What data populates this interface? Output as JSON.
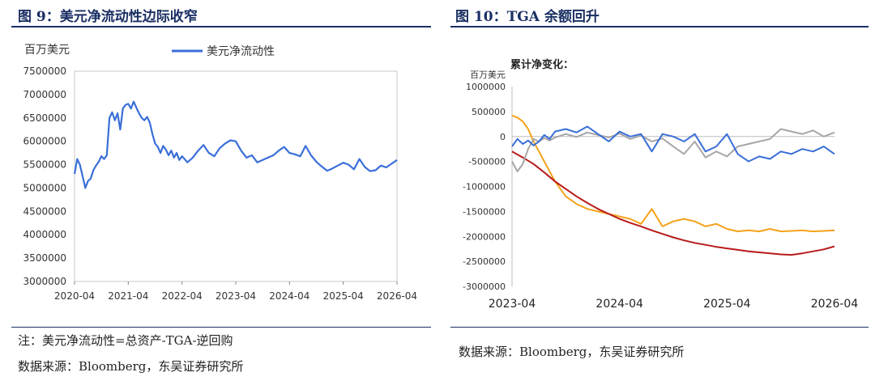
{
  "left": {
    "figure_title": "图 9：美元净流动性边际收窄",
    "note": "注：美元净流动性=总资产-TGA-逆回购",
    "source": "数据来源：Bloomberg，东吴证券研究所"
  },
  "right": {
    "figure_title": "图 10：TGA 余额回升",
    "source": "数据来源：Bloomberg，东吴证券研究所"
  },
  "chart_data": [
    {
      "type": "line",
      "title": "美元净流动性边际收窄",
      "ylabel": "百万美元",
      "ylim": [
        3000000,
        7500000
      ],
      "yticks": [
        "3000000",
        "3500000",
        "4000000",
        "4500000",
        "5000000",
        "5500000",
        "6000000",
        "6500000",
        "7000000",
        "7500000"
      ],
      "xticks": [
        "2020-04",
        "2021-04",
        "2022-04",
        "2023-04",
        "2024-04",
        "2025-04",
        "2026-04"
      ],
      "series": [
        {
          "name": "美元净流动性",
          "color": "#3a6fd8",
          "x": [
            0,
            0.05,
            0.1,
            0.15,
            0.2,
            0.25,
            0.3,
            0.35,
            0.4,
            0.45,
            0.5,
            0.55,
            0.6,
            0.65,
            0.7,
            0.75,
            0.8,
            0.85,
            0.9,
            0.95,
            1.0,
            1.05,
            1.1,
            1.15,
            1.2,
            1.25,
            1.3,
            1.35,
            1.4,
            1.45,
            1.5,
            1.55,
            1.6,
            1.65,
            1.7,
            1.75,
            1.8,
            1.85,
            1.9,
            1.95,
            2.0,
            2.1,
            2.2,
            2.3,
            2.4,
            2.5,
            2.6,
            2.7,
            2.8,
            2.9,
            3.0,
            3.1,
            3.2,
            3.3,
            3.4,
            3.5,
            3.6,
            3.7,
            3.8,
            3.9,
            4.0,
            4.1,
            4.2,
            4.3,
            4.4,
            4.5,
            4.6,
            4.7,
            4.8,
            4.9,
            5.0,
            5.1,
            5.2,
            5.3,
            5.4,
            5.5,
            5.6,
            5.7,
            5.8,
            5.9,
            6.0
          ],
          "y": [
            5300000,
            5620000,
            5500000,
            5250000,
            5000000,
            5150000,
            5200000,
            5380000,
            5480000,
            5560000,
            5680000,
            5620000,
            5700000,
            6500000,
            6620000,
            6450000,
            6600000,
            6250000,
            6700000,
            6780000,
            6800000,
            6700000,
            6850000,
            6720000,
            6600000,
            6500000,
            6450000,
            6520000,
            6400000,
            6150000,
            5950000,
            5880000,
            5750000,
            5900000,
            5820000,
            5700000,
            5800000,
            5650000,
            5750000,
            5600000,
            5680000,
            5550000,
            5650000,
            5800000,
            5920000,
            5750000,
            5680000,
            5850000,
            5950000,
            6020000,
            6000000,
            5800000,
            5650000,
            5700000,
            5550000,
            5600000,
            5650000,
            5700000,
            5800000,
            5880000,
            5750000,
            5720000,
            5680000,
            5900000,
            5700000,
            5560000,
            5460000,
            5370000,
            5420000,
            5480000,
            5540000,
            5500000,
            5400000,
            5620000,
            5450000,
            5360000,
            5380000,
            5480000,
            5440000,
            5520000,
            5600000
          ]
        }
      ]
    },
    {
      "type": "line",
      "title": "TGA 余额回升",
      "subtitle": "累计净变化：",
      "ylabel": "百万美元",
      "ylim": [
        -3000000,
        1000000
      ],
      "yticks": [
        "1000000",
        "500000",
        "0",
        "-500000",
        "-1000000",
        "-1500000",
        "-2000000",
        "-2500000",
        "-3000000"
      ],
      "xticks": [
        "2023-04",
        "2024-04",
        "2025-04",
        "2026-04"
      ],
      "series": [
        {
          "name": "orange",
          "color": "#f5a21a",
          "x": [
            0,
            0.05,
            0.1,
            0.15,
            0.2,
            0.25,
            0.3,
            0.35,
            0.4,
            0.45,
            0.5,
            0.6,
            0.7,
            0.8,
            0.9,
            1.0,
            1.1,
            1.2,
            1.3,
            1.4,
            1.5,
            1.6,
            1.7,
            1.8,
            1.9,
            2.0,
            2.1,
            2.2,
            2.3,
            2.4,
            2.5,
            2.6,
            2.7,
            2.8,
            2.9,
            3.0
          ],
          "y": [
            420000,
            380000,
            300000,
            150000,
            -100000,
            -300000,
            -500000,
            -700000,
            -900000,
            -1050000,
            -1200000,
            -1350000,
            -1450000,
            -1500000,
            -1550000,
            -1600000,
            -1650000,
            -1750000,
            -1450000,
            -1800000,
            -1700000,
            -1650000,
            -1700000,
            -1800000,
            -1750000,
            -1850000,
            -1900000,
            -1880000,
            -1900000,
            -1850000,
            -1900000,
            -1890000,
            -1880000,
            -1900000,
            -1890000,
            -1880000
          ]
        },
        {
          "name": "dark-red",
          "color": "#b81a1a",
          "x": [
            0,
            0.1,
            0.2,
            0.3,
            0.4,
            0.5,
            0.6,
            0.7,
            0.8,
            0.9,
            1.0,
            1.1,
            1.2,
            1.3,
            1.4,
            1.5,
            1.6,
            1.7,
            1.8,
            1.9,
            2.0,
            2.1,
            2.2,
            2.3,
            2.4,
            2.5,
            2.6,
            2.7,
            2.8,
            2.9,
            3.0
          ],
          "y": [
            -300000,
            -420000,
            -550000,
            -720000,
            -900000,
            -1050000,
            -1200000,
            -1330000,
            -1450000,
            -1550000,
            -1650000,
            -1730000,
            -1800000,
            -1880000,
            -1950000,
            -2020000,
            -2080000,
            -2130000,
            -2170000,
            -2210000,
            -2240000,
            -2270000,
            -2300000,
            -2320000,
            -2340000,
            -2360000,
            -2370000,
            -2340000,
            -2300000,
            -2260000,
            -2200000
          ]
        },
        {
          "name": "gray",
          "color": "#a6a6a6",
          "x": [
            0,
            0.05,
            0.1,
            0.15,
            0.2,
            0.25,
            0.3,
            0.35,
            0.4,
            0.5,
            0.6,
            0.7,
            0.8,
            0.9,
            1.0,
            1.1,
            1.2,
            1.3,
            1.4,
            1.5,
            1.6,
            1.7,
            1.8,
            1.9,
            2.0,
            2.1,
            2.2,
            2.3,
            2.4,
            2.5,
            2.6,
            2.7,
            2.8,
            2.9,
            3.0
          ],
          "y": [
            -500000,
            -700000,
            -550000,
            -250000,
            -50000,
            -100000,
            -30000,
            -80000,
            -20000,
            50000,
            -10000,
            80000,
            30000,
            -20000,
            60000,
            -50000,
            20000,
            -100000,
            -40000,
            -200000,
            -350000,
            -100000,
            -420000,
            -300000,
            -400000,
            -200000,
            -150000,
            -100000,
            -50000,
            150000,
            100000,
            50000,
            120000,
            0,
            80000
          ]
        },
        {
          "name": "blue",
          "color": "#3a6fd8",
          "x": [
            0,
            0.05,
            0.1,
            0.15,
            0.2,
            0.25,
            0.3,
            0.35,
            0.4,
            0.5,
            0.6,
            0.7,
            0.8,
            0.9,
            1.0,
            1.1,
            1.2,
            1.3,
            1.4,
            1.5,
            1.6,
            1.7,
            1.8,
            1.9,
            2.0,
            2.1,
            2.2,
            2.3,
            2.4,
            2.5,
            2.6,
            2.7,
            2.8,
            2.9,
            3.0
          ],
          "y": [
            -200000,
            -50000,
            -150000,
            -80000,
            -180000,
            -100000,
            30000,
            -50000,
            100000,
            150000,
            80000,
            200000,
            50000,
            -100000,
            100000,
            0,
            50000,
            -300000,
            50000,
            0,
            -100000,
            50000,
            -300000,
            -200000,
            50000,
            -350000,
            -500000,
            -400000,
            -450000,
            -300000,
            -350000,
            -250000,
            -300000,
            -200000,
            -350000
          ]
        }
      ]
    }
  ]
}
